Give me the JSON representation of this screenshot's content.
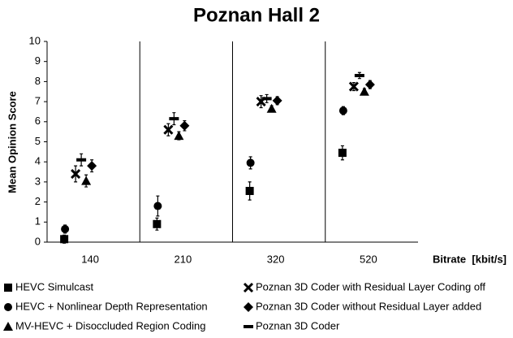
{
  "chart_data": {
    "type": "dot",
    "title": "Poznan Hall 2",
    "ylabel": "Mean Opinion Score",
    "xlabel": "Bitrate  [kbit/s]",
    "categories": [
      "140",
      "210",
      "320",
      "520"
    ],
    "ylim": [
      0,
      10
    ],
    "yticks": [
      0,
      1,
      2,
      3,
      4,
      5,
      6,
      7,
      8,
      9,
      10
    ],
    "series": [
      {
        "name": "HEVC Simulcast",
        "color": "#000000",
        "marker": "square",
        "values": [
          0.15,
          0.9,
          2.55,
          4.45
        ],
        "errors": [
          0.2,
          0.3,
          0.45,
          0.35
        ]
      },
      {
        "name": "HEVC + Nonlinear Depth Representation",
        "color": "#000000",
        "marker": "circle",
        "values": [
          0.65,
          1.8,
          3.95,
          6.55
        ],
        "errors": [
          0.2,
          0.5,
          0.3,
          0.2
        ]
      },
      {
        "name": "MV-HEVC + Disoccluded Region Coding",
        "color": "#000000",
        "marker": "triangle",
        "values": [
          3.05,
          5.3,
          6.65,
          7.5
        ],
        "errors": [
          0.3,
          0.2,
          0.15,
          0.15
        ]
      },
      {
        "name": "Poznan 3D Coder with Residual Layer Coding off",
        "color": "#000000",
        "marker": "x",
        "values": [
          3.4,
          5.6,
          7.0,
          7.75
        ],
        "errors": [
          0.4,
          0.3,
          0.3,
          0.2
        ]
      },
      {
        "name": "Poznan 3D Coder without Residual Layer added",
        "color": "#000000",
        "marker": "diamond",
        "values": [
          3.8,
          5.8,
          7.05,
          7.85
        ],
        "errors": [
          0.3,
          0.25,
          0.2,
          0.2
        ]
      },
      {
        "name": "Poznan 3D Coder",
        "color": "#000000",
        "marker": "dash",
        "values": [
          4.1,
          6.15,
          7.15,
          8.3
        ],
        "errors": [
          0.3,
          0.3,
          0.2,
          0.15
        ]
      }
    ]
  }
}
